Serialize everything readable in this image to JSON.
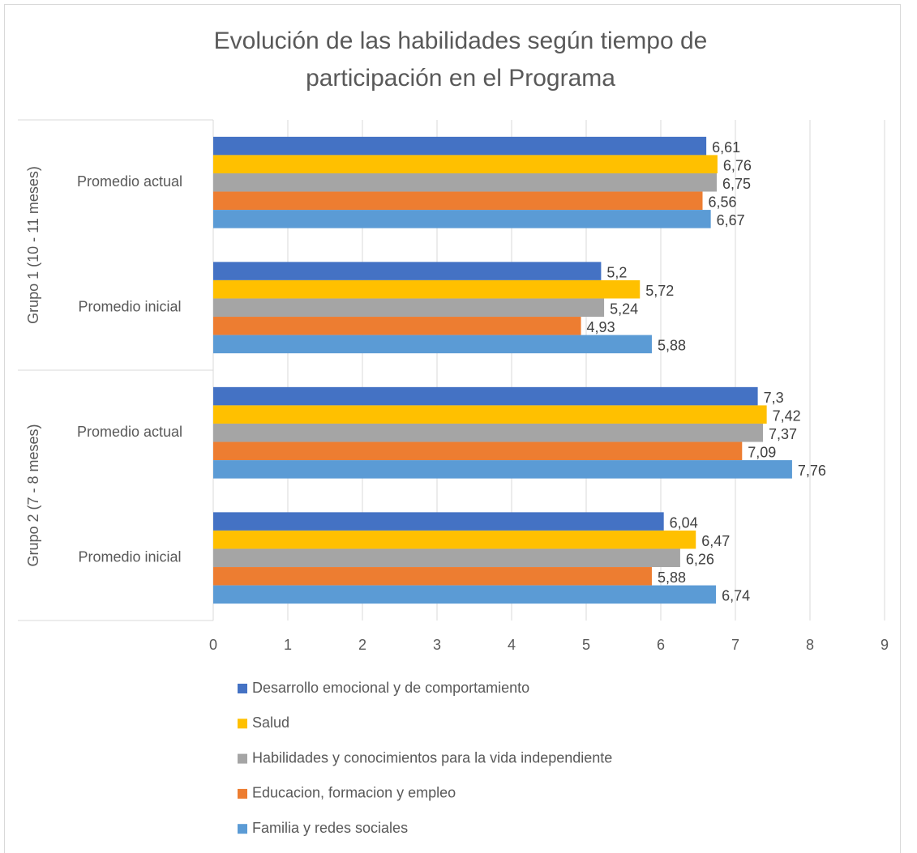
{
  "chart_data": {
    "type": "bar",
    "orientation": "horizontal",
    "title": [
      "Evolución de las habilidades según tiempo de",
      "participación en el Programa"
    ],
    "groups": [
      "Grupo 1 (10 - 11 meses)",
      "Grupo 2 (7 - 8 meses)"
    ],
    "categories": [
      "Promedio actual",
      "Promedio inicial",
      "Promedio actual",
      "Promedio inicial"
    ],
    "series": [
      {
        "name": "Desarrollo emocional y de comportamiento",
        "color": "#4472c4",
        "values": [
          6.61,
          5.2,
          7.3,
          6.04
        ],
        "value_labels": [
          "6,61",
          "5,2",
          "7,3",
          "6,04"
        ]
      },
      {
        "name": "Salud",
        "color": "#ffc000",
        "values": [
          6.76,
          5.72,
          7.42,
          6.47
        ],
        "value_labels": [
          "6,76",
          "5,72",
          "7,42",
          "6,47"
        ]
      },
      {
        "name": "Habilidades y conocimientos para la vida independiente",
        "color": "#a5a5a5",
        "values": [
          6.75,
          5.24,
          7.37,
          6.26
        ],
        "value_labels": [
          "6,75",
          "5,24",
          "7,37",
          "6,26"
        ]
      },
      {
        "name": "Educacion, formacion y empleo",
        "color": "#ed7d31",
        "values": [
          6.56,
          4.93,
          7.09,
          5.88
        ],
        "value_labels": [
          "6,56",
          "4,93",
          "7,09",
          "5,88"
        ]
      },
      {
        "name": "Familia y redes sociales",
        "color": "#5b9bd5",
        "values": [
          6.67,
          5.88,
          7.76,
          6.74
        ],
        "value_labels": [
          "6,67",
          "5,88",
          "7,76",
          "6,74"
        ]
      }
    ],
    "xlim": [
      0,
      9
    ],
    "xticks": [
      0,
      1,
      2,
      3,
      4,
      5,
      6,
      7,
      8,
      9
    ],
    "grid": true,
    "legend": "bottom"
  }
}
